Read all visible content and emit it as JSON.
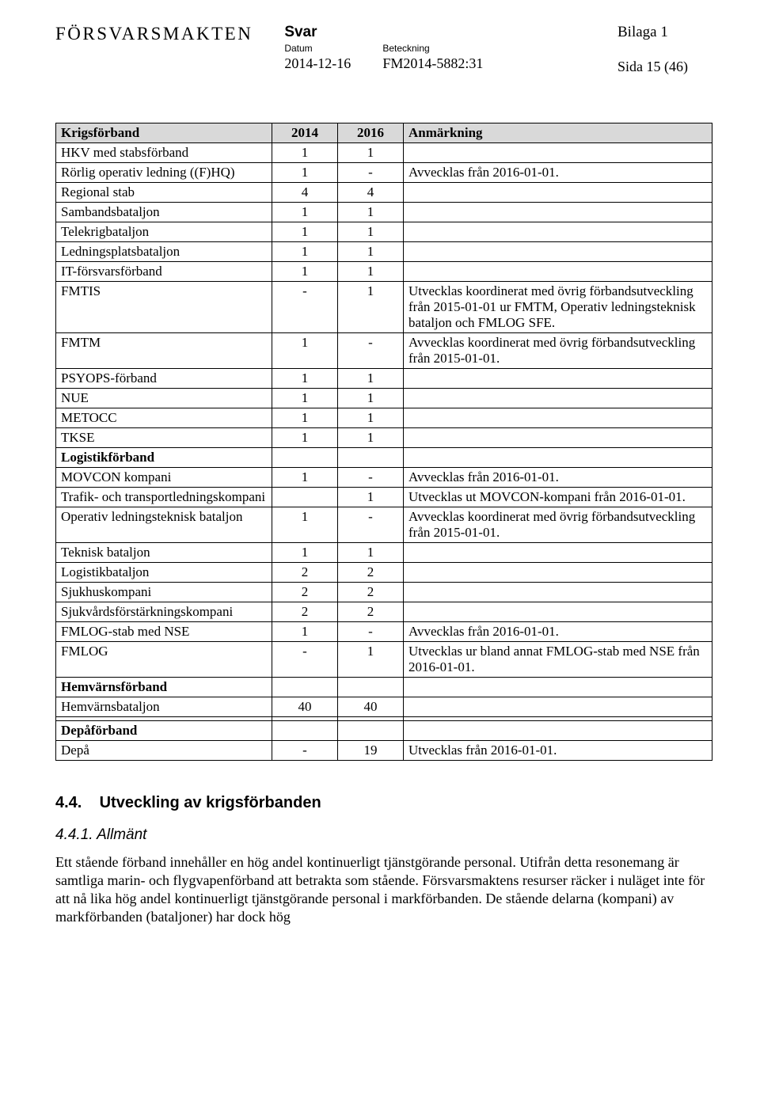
{
  "header": {
    "logo": "FÖRSVARSMAKTEN",
    "svar": "Svar",
    "datum_label": "Datum",
    "datum": "2014-12-16",
    "beteckning_label": "Beteckning",
    "beteckning": "FM2014-5882:31",
    "bilaga": "Bilaga 1",
    "sida": "Sida 15 (46)"
  },
  "table": {
    "head": {
      "c1": "Krigsförband",
      "c2": "2014",
      "c3": "2016",
      "c4": "Anmärkning"
    },
    "rows": [
      {
        "c1": "HKV med stabsförband",
        "c2": "1",
        "c3": "1",
        "c4": ""
      },
      {
        "c1": "Rörlig operativ ledning ((F)HQ)",
        "c2": "1",
        "c3": "-",
        "c4": "Avvecklas från 2016-01-01."
      },
      {
        "c1": "Regional stab",
        "c2": "4",
        "c3": "4",
        "c4": ""
      },
      {
        "c1": "Sambandsbataljon",
        "c2": "1",
        "c3": "1",
        "c4": ""
      },
      {
        "c1": "Telekrigbataljon",
        "c2": "1",
        "c3": "1",
        "c4": ""
      },
      {
        "c1": "Ledningsplatsbataljon",
        "c2": "1",
        "c3": "1",
        "c4": ""
      },
      {
        "c1": "IT-försvarsförband",
        "c2": "1",
        "c3": "1",
        "c4": ""
      },
      {
        "c1": "FMTIS",
        "c2": "-",
        "c3": "1",
        "c4": "Utvecklas koordinerat med övrig förbandsutveckling från 2015-01-01 ur FMTM, Operativ ledningsteknisk bataljon och FMLOG SFE."
      },
      {
        "c1": "FMTM",
        "c2": "1",
        "c3": "-",
        "c4": "Avvecklas koordinerat med övrig förbandsutveckling från 2015-01-01."
      },
      {
        "c1": "PSYOPS-förband",
        "c2": "1",
        "c3": "1",
        "c4": ""
      },
      {
        "c1": "NUE",
        "c2": "1",
        "c3": "1",
        "c4": ""
      },
      {
        "c1": "METOCC",
        "c2": "1",
        "c3": "1",
        "c4": ""
      },
      {
        "c1": "TKSE",
        "c2": "1",
        "c3": "1",
        "c4": ""
      },
      {
        "c1": "Logistikförband",
        "c2": "",
        "c3": "",
        "c4": "",
        "bold": true
      },
      {
        "c1": "MOVCON kompani",
        "c2": "1",
        "c3": "-",
        "c4": "Avvecklas från 2016-01-01."
      },
      {
        "c1": "Trafik- och transportledningskompani",
        "c2": "",
        "c3": "1",
        "c4": "Utvecklas ut MOVCON-kompani från 2016-01-01."
      },
      {
        "c1": "Operativ ledningsteknisk bataljon",
        "c2": "1",
        "c3": "-",
        "c4": "Avvecklas koordinerat med övrig förbandsutveckling från 2015-01-01."
      },
      {
        "c1": "Teknisk bataljon",
        "c2": "1",
        "c3": "1",
        "c4": ""
      },
      {
        "c1": "Logistikbataljon",
        "c2": "2",
        "c3": "2",
        "c4": ""
      },
      {
        "c1": "Sjukhuskompani",
        "c2": "2",
        "c3": "2",
        "c4": ""
      },
      {
        "c1": "Sjukvårdsförstärkningskompani",
        "c2": "2",
        "c3": "2",
        "c4": ""
      },
      {
        "c1": "FMLOG-stab med NSE",
        "c2": "1",
        "c3": "-",
        "c4": "Avvecklas från 2016-01-01."
      },
      {
        "c1": "FMLOG",
        "c2": "-",
        "c3": "1",
        "c4": "Utvecklas ur bland annat FMLOG-stab med NSE från 2016-01-01."
      },
      {
        "c1": "Hemvärnsförband",
        "c2": "",
        "c3": "",
        "c4": "",
        "bold": true
      },
      {
        "c1": "Hemvärnsbataljon",
        "c2": "40",
        "c3": "40",
        "c4": ""
      },
      {
        "c1": "",
        "c2": "",
        "c3": "",
        "c4": ""
      },
      {
        "c1": "Depåförband",
        "c2": "",
        "c3": "",
        "c4": "",
        "bold": true
      },
      {
        "c1": "Depå",
        "c2": "-",
        "c3": "19",
        "c4": "Utvecklas från 2016-01-01."
      }
    ]
  },
  "sections": {
    "h44_num": "4.4.",
    "h44_text": "Utveckling av krigsförbanden",
    "h441": "4.4.1. Allmänt",
    "para": "Ett stående förband innehåller en hög andel kontinuerligt tjänstgörande personal. Utifrån detta resonemang är samtliga marin- och flygvapenförband att betrakta som stående. Försvarsmaktens resurser räcker i nuläget inte för att nå lika hög andel kontinuerligt tjänstgörande personal i markförbanden. De stående delarna (kompani) av markförbanden (bataljoner) har dock hög"
  }
}
